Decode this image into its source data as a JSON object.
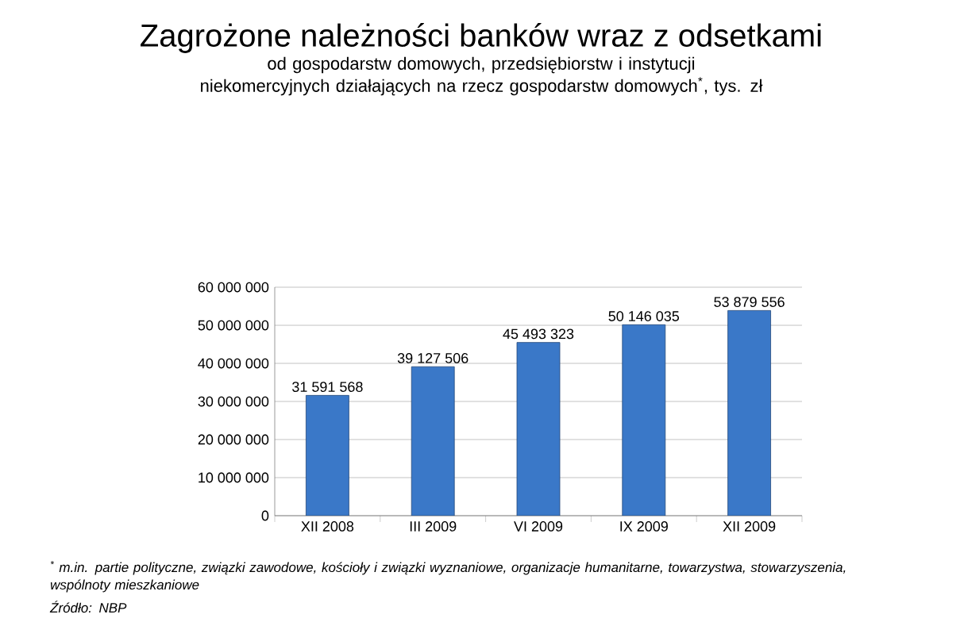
{
  "chart_data": {
    "type": "bar",
    "title": "Zagrożone należności banków wraz z odsetkami",
    "subtitle": "od gospodarstw domowych, przedsiębiorstw i instytucji niekomercyjnych działających na rzecz gospodarstw domowych$^{*}$, tys. zł",
    "categories": [
      "XII 2008",
      "III 2009",
      "VI 2009",
      "IX 2009",
      "XII 2009"
    ],
    "values": [
      31591568,
      39127506,
      45493323,
      50146035,
      53879556
    ],
    "value_labels": [
      "31 591 568",
      "39 127 506",
      "45 493 323",
      "50 146 035",
      "53 879 556"
    ],
    "color": "#3a78c8",
    "ylim": [
      0,
      60000000
    ],
    "yticks": [
      {
        "value": 0,
        "label": "0"
      },
      {
        "value": 10000000,
        "label": "10 000 000"
      },
      {
        "value": 20000000,
        "label": "20 000 000"
      },
      {
        "value": 30000000,
        "label": "30 000 000"
      },
      {
        "value": 40000000,
        "label": "40 000 000"
      },
      {
        "value": 50000000,
        "label": "50 000 000"
      },
      {
        "value": 60000000,
        "label": "60 000 000"
      }
    ],
    "grid": "y",
    "annotations": [
      "$^{*}$ m.in. partie polityczne, związki zawodowe, kościoły i związki wyznaniowe, organizacje humanitarne, towarzystwa, stowarzyszenia, wspólnoty mieszkaniowe",
      "Źródło: NBP"
    ]
  }
}
